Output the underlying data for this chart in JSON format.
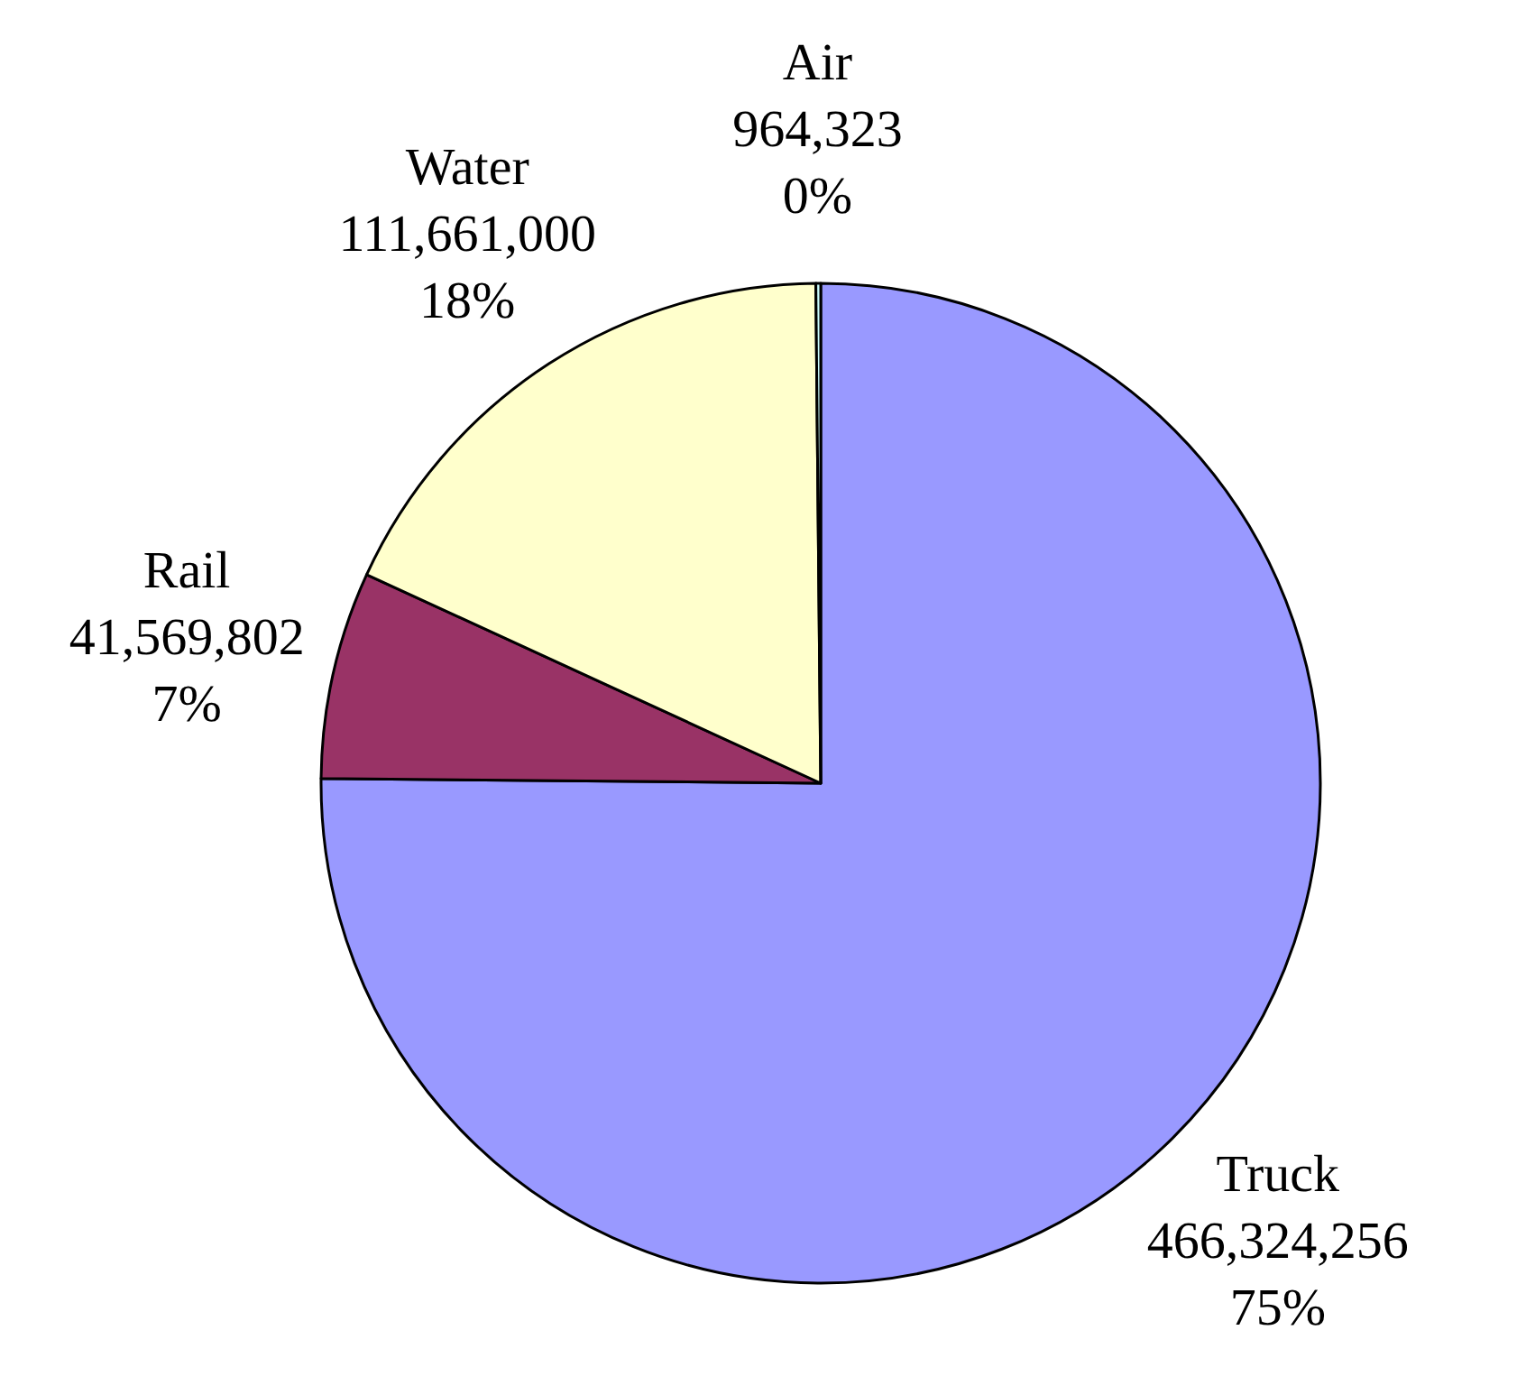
{
  "chart_data": {
    "type": "pie",
    "categories": [
      "Truck",
      "Rail",
      "Water",
      "Air"
    ],
    "values": [
      466324256,
      41569802,
      111661000,
      964323
    ],
    "colors": [
      "#9999ff",
      "#993366",
      "#ffffcc",
      "#ccffff"
    ],
    "value_labels": [
      "466,324,256\n75%",
      "41,569,802\n7%",
      "111,661,000\n18%",
      "964,323\n0%"
    ]
  }
}
